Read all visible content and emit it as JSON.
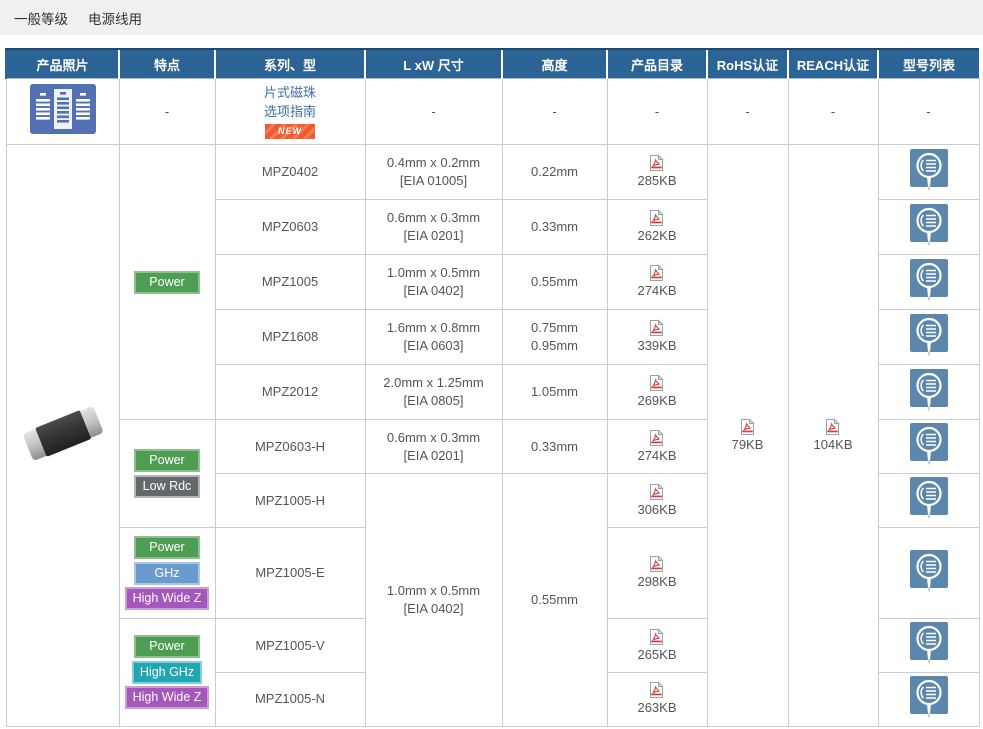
{
  "toolbar": {
    "tabs": [
      {
        "label": "一般等级"
      },
      {
        "label": "电源线用"
      }
    ]
  },
  "table": {
    "headers": [
      "产品照片",
      "特点",
      "系列、型",
      "L xW 尺寸",
      "高度",
      "产品目录",
      "RoHS认证",
      "REACH认证",
      "型号列表"
    ],
    "guide_row": {
      "dash": "-",
      "link": [
        "片式磁珠",
        "选项指南"
      ],
      "new_badge": "NEW"
    },
    "products": [
      {
        "series": "MPZ0402",
        "size": "0.4mm x 0.2mm",
        "eia": "[EIA 01005]",
        "heights": [
          "0.22mm"
        ],
        "catalog_kb": "285KB"
      },
      {
        "series": "MPZ0603",
        "size": "0.6mm x 0.3mm",
        "eia": "[EIA 0201]",
        "heights": [
          "0.33mm"
        ],
        "catalog_kb": "262KB"
      },
      {
        "series": "MPZ1005",
        "size": "1.0mm x 0.5mm",
        "eia": "[EIA 0402]",
        "heights": [
          "0.55mm"
        ],
        "catalog_kb": "274KB"
      },
      {
        "series": "MPZ1608",
        "size": "1.6mm x 0.8mm",
        "eia": "[EIA 0603]",
        "heights": [
          "0.75mm",
          "0.95mm"
        ],
        "catalog_kb": "339KB"
      },
      {
        "series": "MPZ2012",
        "size": "2.0mm x 1.25mm",
        "eia": "[EIA 0805]",
        "heights": [
          "1.05mm"
        ],
        "catalog_kb": "269KB"
      },
      {
        "series": "MPZ0603-H",
        "size": "0.6mm x 0.3mm",
        "eia": "[EIA 0201]",
        "heights": [
          "0.33mm"
        ],
        "catalog_kb": "274KB"
      },
      {
        "series": "MPZ1005-H",
        "catalog_kb": "306KB"
      },
      {
        "series": "MPZ1005-E",
        "catalog_kb": "298KB"
      },
      {
        "series": "MPZ1005-V",
        "catalog_kb": "265KB"
      },
      {
        "series": "MPZ1005-N",
        "catalog_kb": "263KB"
      }
    ],
    "feature_groups": [
      {
        "start": 0,
        "end": 4,
        "badges": [
          "Power"
        ]
      },
      {
        "start": 5,
        "end": 6,
        "badges": [
          "Power",
          "Low Rdc"
        ]
      },
      {
        "start": 7,
        "end": 7,
        "badges": [
          "Power",
          "GHz",
          "High Wide Z"
        ]
      },
      {
        "start": 8,
        "end": 9,
        "badges": [
          "Power",
          "High GHz",
          "High Wide Z"
        ]
      }
    ],
    "size_merge": {
      "start": 6,
      "end": 9,
      "size": "1.0mm x 0.5mm",
      "eia": "[EIA 0402]",
      "height": "0.55mm"
    },
    "rohs_kb": "79KB",
    "reach_kb": "104KB",
    "colors": {
      "header_bg": "#2c6395",
      "link": "#3b6ea5",
      "new_badge": "#f25b31",
      "power": "#4d9e53",
      "low_rdc": "#63686b",
      "ghz": "#6b9ace",
      "high_ghz": "#22a5b2",
      "high_wide_z": "#a558bb",
      "model_list_icon": "#5b87ad",
      "guide_icon": "#5470b4"
    },
    "icons": {
      "guide": "selection-guide-icon",
      "catalog": "pdf-icon",
      "model_list": "magnifier-list-icon",
      "photo": "chip-photo"
    }
  }
}
